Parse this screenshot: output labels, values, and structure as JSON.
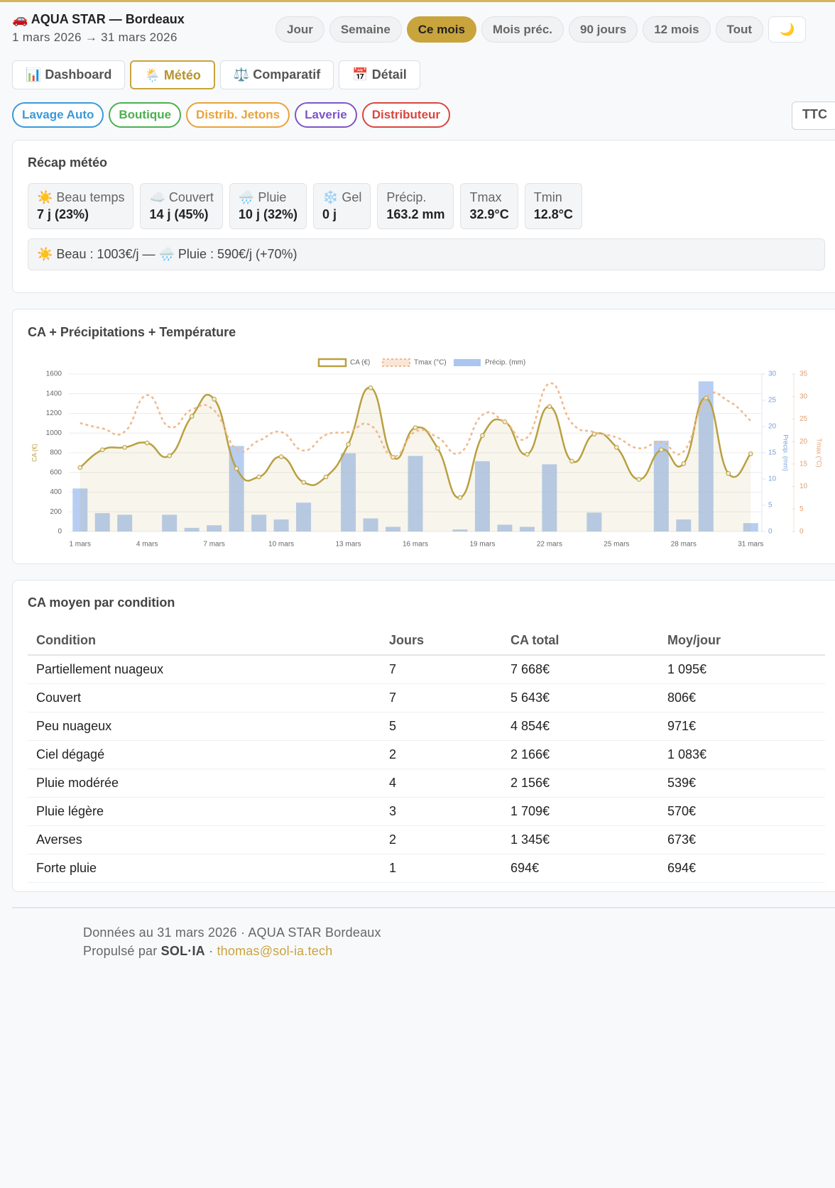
{
  "header": {
    "title": "🚗 AQUA STAR — Bordeaux",
    "date_range": "1 mars 2026 → 31 mars 2026"
  },
  "periods": [
    "Jour",
    "Semaine",
    "Ce mois",
    "Mois préc.",
    "90 jours",
    "12 mois",
    "Tout",
    "🌙"
  ],
  "tabs": [
    "📊 Dashboard",
    "🌦️ Météo",
    "⚖️ Comparatif",
    "📅 Détail"
  ],
  "filters": [
    "Lavage Auto",
    "Boutique",
    "Distrib. Jetons",
    "Laverie",
    "Distributeur"
  ],
  "tax_toggle": "TTC",
  "recap": {
    "title": "Récap météo",
    "stats": [
      {
        "label": "☀️ Beau temps",
        "value": "7 j (23%)"
      },
      {
        "label": "☁️ Couvert",
        "value": "14 j (45%)"
      },
      {
        "label": "🌧️ Pluie",
        "value": "10 j (32%)"
      },
      {
        "label": "❄️ Gel",
        "value": "0 j"
      },
      {
        "label": "Précip.",
        "value": "163.2 mm"
      },
      {
        "label": "Tmax",
        "value": "32.9°C"
      },
      {
        "label": "Tmin",
        "value": "12.8°C"
      }
    ],
    "summary": "☀️ Beau : 1003€/j — 🌧️ Pluie : 590€/j (+70%)"
  },
  "chart_data": {
    "type": "combo",
    "title": "CA + Précipitations + Température",
    "categories": [
      "1 mars",
      null,
      null,
      "4 mars",
      null,
      null,
      "7 mars",
      null,
      null,
      "10 mars",
      null,
      null,
      "13 mars",
      null,
      null,
      "16 mars",
      null,
      null,
      "19 mars",
      null,
      null,
      "22 mars",
      null,
      null,
      "25 mars",
      null,
      null,
      "28 mars",
      null,
      null,
      "31 mars"
    ],
    "series": [
      {
        "name": "CA (€)",
        "color": "#b9a040",
        "kind": "line",
        "fill": true,
        "values": [
          650,
          830,
          855,
          900,
          770,
          1170,
          1345,
          640,
          555,
          760,
          500,
          555,
          885,
          1460,
          755,
          1055,
          845,
          345,
          975,
          1115,
          785,
          1270,
          715,
          990,
          855,
          530,
          830,
          690,
          1355,
          590,
          790
        ]
      },
      {
        "name": "Tmax (°C)",
        "color": "#f0b88c",
        "kind": "line",
        "dashed": true,
        "axis": "y3",
        "values": [
          24.1,
          22.9,
          22.2,
          30.3,
          23.2,
          27.1,
          26.9,
          18.3,
          20.2,
          22.1,
          18.0,
          21.5,
          22.1,
          23.6,
          16.7,
          22.2,
          20.9,
          17.5,
          25.9,
          24.4,
          20.9,
          32.9,
          24.1,
          22.1,
          20.9,
          18.5,
          19.9,
          17.8,
          29.6,
          29.0,
          24.6
        ]
      },
      {
        "name": "Précip. (mm)",
        "color": "#aac6f0",
        "kind": "bar",
        "axis": "y2",
        "values": [
          8.2,
          3.5,
          3.2,
          0,
          3.2,
          0.7,
          1.2,
          16.3,
          3.2,
          2.3,
          5.5,
          0,
          14.9,
          2.5,
          0.9,
          14.4,
          0,
          0.4,
          13.4,
          1.3,
          0.9,
          12.8,
          0,
          3.6,
          0,
          0,
          17.3,
          2.3,
          28.6,
          0,
          1.6
        ]
      }
    ],
    "y_label": "CA (€)",
    "ylim": [
      0,
      1600
    ],
    "yticks": [
      0,
      200,
      400,
      600,
      800,
      1000,
      1200,
      1400,
      1600
    ],
    "y2_label": "Précip. (mm)",
    "y2lim": [
      0,
      30
    ],
    "y2ticks": [
      0,
      5,
      10,
      15,
      20,
      25,
      30
    ],
    "y3_label": "Tmax (°C)",
    "y3lim": [
      0,
      35
    ],
    "y3ticks": [
      0,
      5,
      10,
      15,
      20,
      25,
      30,
      35
    ],
    "grid": true,
    "legend": "top"
  },
  "table": {
    "title": "CA moyen par condition",
    "columns": [
      "Condition",
      "Jours",
      "CA total",
      "Moy/jour"
    ],
    "rows": [
      [
        "Partiellement nuageux",
        "7",
        "7 668€",
        "1 095€"
      ],
      [
        "Couvert",
        "7",
        "5 643€",
        "806€"
      ],
      [
        "Peu nuageux",
        "5",
        "4 854€",
        "971€"
      ],
      [
        "Ciel dégagé",
        "2",
        "2 166€",
        "1 083€"
      ],
      [
        "Pluie modérée",
        "4",
        "2 156€",
        "539€"
      ],
      [
        "Pluie légère",
        "3",
        "1 709€",
        "570€"
      ],
      [
        "Averses",
        "2",
        "1 345€",
        "673€"
      ],
      [
        "Forte pluie",
        "1",
        "694€",
        "694€"
      ]
    ]
  },
  "footer": {
    "line1": "Données au 31 mars 2026 · AQUA STAR Bordeaux",
    "powered": "Propulsé par",
    "brand": "SOL·IA",
    "sep": "·",
    "email": "thomas@sol-ia.tech"
  }
}
